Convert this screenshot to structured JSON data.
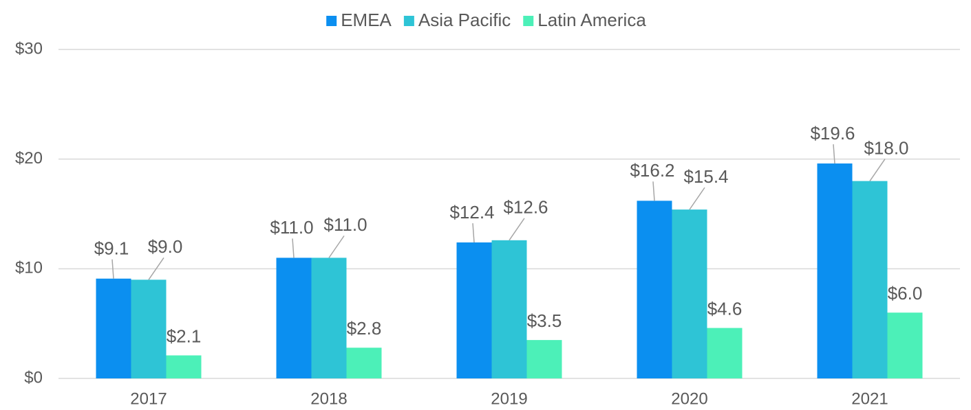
{
  "chart_data": {
    "type": "bar",
    "categories": [
      "2017",
      "2018",
      "2019",
      "2020",
      "2021"
    ],
    "series": [
      {
        "name": "EMEA",
        "color": "#0b8ff0",
        "values": [
          9.1,
          11.0,
          12.4,
          16.2,
          19.6
        ],
        "value_labels": [
          "$9.1",
          "$11.0",
          "$12.4",
          "$16.2",
          "$19.6"
        ]
      },
      {
        "name": "Asia Pacific",
        "color": "#2ec4d6",
        "values": [
          9.0,
          11.0,
          12.6,
          15.4,
          18.0
        ],
        "value_labels": [
          "$9.0",
          "$11.0",
          "$12.6",
          "$15.4",
          "$18.0"
        ]
      },
      {
        "name": "Latin America",
        "color": "#4cf0b8",
        "values": [
          2.1,
          2.8,
          3.5,
          4.6,
          6.0
        ],
        "value_labels": [
          "$2.1",
          "$2.8",
          "$3.5",
          "$4.6",
          "$6.0"
        ]
      }
    ],
    "ylim": [
      0,
      30
    ],
    "yticks": [
      {
        "value": 0,
        "label": "$0"
      },
      {
        "value": 10,
        "label": "$10"
      },
      {
        "value": 20,
        "label": "$20"
      },
      {
        "value": 30,
        "label": "$30"
      }
    ],
    "grid": true,
    "legend": "top"
  }
}
